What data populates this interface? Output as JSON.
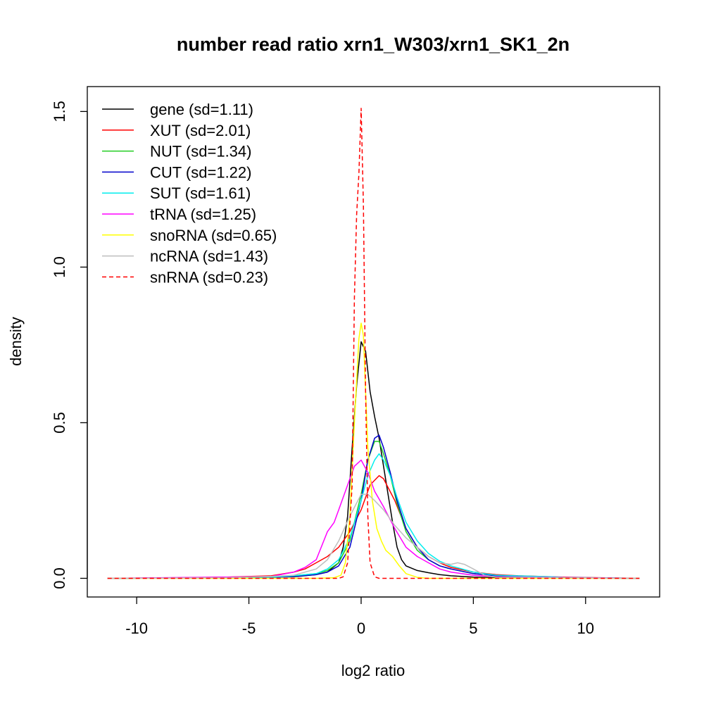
{
  "chart_data": {
    "type": "line",
    "title": "number read ratio xrn1_W303/xrn1_SK1_2n",
    "xlabel": "log2 ratio",
    "ylabel": "density",
    "xlim": [
      -12.2,
      13.3
    ],
    "ylim": [
      -0.06,
      1.58
    ],
    "xticks": [
      -10,
      -5,
      0,
      5,
      10
    ],
    "xtick_labels": [
      "-10",
      "-5",
      "0",
      "5",
      "10"
    ],
    "yticks": [
      0.0,
      0.5,
      1.0,
      1.5
    ],
    "ytick_labels": [
      "0.0",
      "0.5",
      "1.0",
      "1.5"
    ],
    "grid": false,
    "legend_position": "top-left",
    "series": [
      {
        "name": "gene (sd=1.11)",
        "color": "#000000",
        "dash": "solid",
        "x": [
          -11.3,
          -6,
          -3,
          -2,
          -1.5,
          -1,
          -0.8,
          -0.6,
          -0.4,
          -0.2,
          0,
          0.2,
          0.4,
          0.6,
          0.8,
          1,
          1.2,
          1.4,
          1.6,
          1.8,
          2,
          2.5,
          3,
          3.5,
          4,
          5,
          6,
          8,
          12.4
        ],
        "y": [
          0,
          0.002,
          0.005,
          0.012,
          0.02,
          0.05,
          0.1,
          0.2,
          0.42,
          0.62,
          0.76,
          0.73,
          0.6,
          0.52,
          0.45,
          0.36,
          0.27,
          0.18,
          0.1,
          0.06,
          0.04,
          0.025,
          0.018,
          0.012,
          0.008,
          0.004,
          0.002,
          0.001,
          0
        ]
      },
      {
        "name": "XUT (sd=2.01)",
        "color": "#ff0000",
        "dash": "solid",
        "x": [
          -11.3,
          -8,
          -6,
          -4,
          -3,
          -2.5,
          -2,
          -1.5,
          -1,
          -0.5,
          0,
          0.4,
          0.8,
          1,
          1.5,
          2,
          2.5,
          3,
          3.5,
          4,
          5,
          6,
          7,
          9,
          12.4
        ],
        "y": [
          0,
          0.002,
          0.004,
          0.008,
          0.02,
          0.03,
          0.05,
          0.07,
          0.1,
          0.15,
          0.22,
          0.3,
          0.33,
          0.32,
          0.25,
          0.16,
          0.1,
          0.07,
          0.05,
          0.035,
          0.02,
          0.012,
          0.008,
          0.004,
          0
        ]
      },
      {
        "name": "NUT (sd=1.34)",
        "color": "#22cc22",
        "dash": "solid",
        "x": [
          -11.3,
          -6,
          -4,
          -3,
          -2,
          -1.5,
          -1,
          -0.5,
          0,
          0.3,
          0.6,
          0.8,
          1,
          1.3,
          1.6,
          2,
          2.5,
          3,
          3.5,
          4,
          5,
          6,
          8,
          12.4
        ],
        "y": [
          0,
          0.002,
          0.004,
          0.008,
          0.015,
          0.025,
          0.05,
          0.12,
          0.27,
          0.38,
          0.44,
          0.44,
          0.4,
          0.33,
          0.24,
          0.15,
          0.09,
          0.06,
          0.04,
          0.03,
          0.015,
          0.008,
          0.003,
          0
        ]
      },
      {
        "name": "CUT (sd=1.22)",
        "color": "#0000cc",
        "dash": "solid",
        "x": [
          -11.3,
          -6,
          -4,
          -3,
          -2,
          -1.5,
          -1,
          -0.5,
          0,
          0.3,
          0.6,
          0.8,
          1,
          1.3,
          1.6,
          2,
          2.5,
          3,
          3.5,
          4,
          5,
          6,
          8,
          12.4
        ],
        "y": [
          0,
          0.002,
          0.003,
          0.006,
          0.012,
          0.02,
          0.04,
          0.1,
          0.25,
          0.38,
          0.45,
          0.46,
          0.42,
          0.34,
          0.25,
          0.16,
          0.1,
          0.06,
          0.04,
          0.03,
          0.015,
          0.008,
          0.003,
          0
        ]
      },
      {
        "name": "SUT (sd=1.61)",
        "color": "#00eeee",
        "dash": "solid",
        "x": [
          -11.3,
          -6,
          -4,
          -3,
          -2,
          -1.5,
          -1,
          -0.5,
          0,
          0.3,
          0.6,
          0.8,
          1,
          1.3,
          1.6,
          2,
          2.5,
          3,
          3.5,
          4,
          5,
          6,
          8.5,
          9,
          12.4
        ],
        "y": [
          0,
          0.002,
          0.004,
          0.008,
          0.015,
          0.03,
          0.06,
          0.13,
          0.25,
          0.33,
          0.38,
          0.4,
          0.38,
          0.33,
          0.26,
          0.18,
          0.12,
          0.08,
          0.055,
          0.04,
          0.02,
          0.01,
          0.005,
          0.003,
          0
        ]
      },
      {
        "name": "tRNA (sd=1.25)",
        "color": "#ff00ff",
        "dash": "solid",
        "x": [
          -11.3,
          -6,
          -4,
          -3,
          -2.5,
          -2,
          -1.5,
          -1.2,
          -1,
          -0.6,
          -0.3,
          0,
          0.3,
          0.6,
          1,
          1.5,
          2,
          2.5,
          3,
          3.5,
          4,
          5,
          6,
          12.4
        ],
        "y": [
          0,
          0.004,
          0.006,
          0.02,
          0.035,
          0.06,
          0.15,
          0.18,
          0.22,
          0.3,
          0.36,
          0.38,
          0.34,
          0.28,
          0.23,
          0.16,
          0.1,
          0.07,
          0.05,
          0.03,
          0.02,
          0.01,
          0.005,
          0
        ]
      },
      {
        "name": "snoRNA (sd=0.65)",
        "color": "#ffff00",
        "dash": "solid",
        "x": [
          -11.3,
          -2,
          -1.2,
          -0.9,
          -0.7,
          -0.5,
          -0.3,
          -0.1,
          0,
          0.1,
          0.2,
          0.3,
          0.5,
          0.7,
          0.9,
          1.1,
          1.4,
          1.7,
          2,
          2.5,
          3,
          12.4
        ],
        "y": [
          0,
          0,
          0.002,
          0.01,
          0.05,
          0.2,
          0.5,
          0.77,
          0.82,
          0.78,
          0.6,
          0.42,
          0.25,
          0.16,
          0.12,
          0.09,
          0.07,
          0.04,
          0.015,
          0.003,
          0,
          0
        ]
      },
      {
        "name": "ncRNA (sd=1.43)",
        "color": "#bebebe",
        "dash": "solid",
        "x": [
          -11.3,
          -6,
          -4,
          -3,
          -2,
          -1.5,
          -1,
          -0.5,
          0,
          0.3,
          0.6,
          1,
          1.5,
          2,
          2.5,
          3,
          3.5,
          4,
          4.3,
          4.6,
          5,
          5.5,
          6,
          12.4
        ],
        "y": [
          0,
          0.002,
          0.006,
          0.01,
          0.03,
          0.06,
          0.12,
          0.2,
          0.27,
          0.27,
          0.25,
          0.22,
          0.17,
          0.13,
          0.1,
          0.07,
          0.05,
          0.045,
          0.05,
          0.045,
          0.03,
          0.01,
          0.004,
          0
        ]
      },
      {
        "name": "snRNA (sd=0.23)",
        "color": "#ff0000",
        "dash": "dashed",
        "x": [
          -11.3,
          -1.0,
          -0.8,
          -0.6,
          -0.4,
          -0.3,
          -0.2,
          -0.1,
          0,
          0.1,
          0.2,
          0.3,
          0.4,
          0.6,
          0.8,
          12.4
        ],
        "y": [
          0,
          0,
          0.005,
          0.05,
          0.3,
          0.9,
          1.17,
          1.3,
          1.51,
          1.2,
          0.6,
          0.2,
          0.05,
          0.005,
          0,
          0
        ]
      }
    ]
  }
}
